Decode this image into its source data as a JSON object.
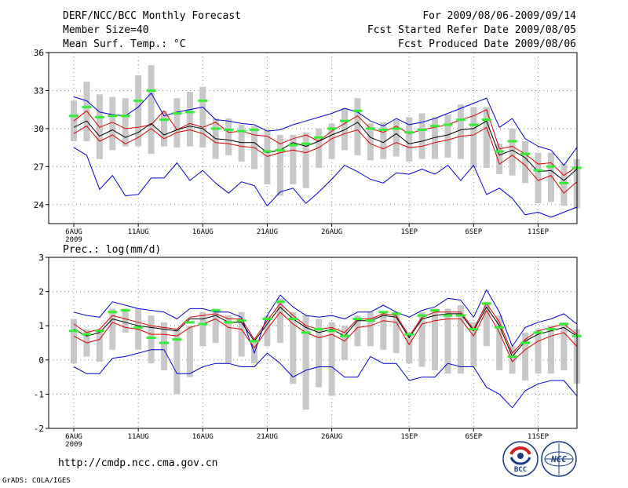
{
  "header": {
    "title": "DERF/NCC/BCC Monthly Forecast",
    "member_size": "Member Size=40",
    "variable": "Mean Surf. Temp.: °C",
    "forecast_period": "For 2009/08/06-2009/09/14",
    "start_date": "Fcst Started Refer Date 2009/08/05",
    "produced_date": "Fcst Produced Date 2009/08/06"
  },
  "footer": {
    "url": "http://cmdp.ncc.cma.gov.cn",
    "credit": "GrADS: COLA/IGES"
  },
  "logos": [
    {
      "name": "bcc-logo",
      "text": "BCC"
    },
    {
      "name": "ncc-logo",
      "text": "NCC"
    }
  ],
  "colors": {
    "envelope": "#0000dd",
    "spread": "#dd0000",
    "mean": "#000000",
    "box": "#c8c8c8",
    "marker": "#33ee33",
    "grid": "#888888"
  },
  "chart_data": [
    {
      "type": "line",
      "title": "Mean Surf. Temp.: °C",
      "ylabel": "°C",
      "x_days": [
        1,
        2,
        3,
        4,
        5,
        6,
        7,
        8,
        9,
        10,
        11,
        12,
        13,
        14,
        15,
        16,
        17,
        18,
        19,
        20,
        21,
        22,
        23,
        24,
        25,
        26,
        27,
        28,
        29,
        30,
        31,
        32,
        33,
        34,
        35,
        36,
        37,
        38,
        39,
        40
      ],
      "ylim": [
        22.5,
        36
      ],
      "yticks": [
        24,
        27,
        30,
        33,
        36
      ],
      "xticks": [
        {
          "day": 1,
          "label": "6AUG"
        },
        {
          "day": 6,
          "label": "11AUG"
        },
        {
          "day": 11,
          "label": "16AUG"
        },
        {
          "day": 16,
          "label": "21AUG"
        },
        {
          "day": 21,
          "label": "26AUG"
        },
        {
          "day": 27,
          "label": "1SEP"
        },
        {
          "day": 32,
          "label": "6SEP"
        },
        {
          "day": 37,
          "label": "11SEP"
        }
      ],
      "year_label": "2009",
      "grid": true,
      "series": [
        {
          "name": "max",
          "values": [
            32.5,
            32.2,
            31.3,
            31.1,
            31.0,
            31.7,
            32.8,
            31.0,
            31.3,
            31.5,
            31.7,
            30.7,
            30.6,
            30.4,
            30.3,
            29.8,
            29.9,
            30.3,
            30.6,
            30.9,
            31.2,
            31.6,
            31.3,
            30.6,
            30.2,
            30.8,
            30.3,
            30.5,
            30.8,
            31.2,
            31.6,
            32.0,
            32.4,
            30.1,
            30.8,
            29.2,
            28.6,
            28.3,
            27.1,
            28.5
          ]
        },
        {
          "name": "upper",
          "values": [
            30.6,
            31.4,
            30.1,
            30.5,
            30.0,
            30.1,
            30.3,
            31.4,
            29.9,
            30.4,
            30.1,
            30.5,
            29.7,
            29.8,
            29.5,
            29.4,
            28.8,
            29.2,
            29.5,
            29.0,
            29.8,
            30.4,
            31.0,
            30.0,
            29.7,
            30.2,
            29.6,
            29.9,
            30.1,
            30.3,
            30.7,
            31.0,
            31.5,
            28.4,
            28.6,
            28.0,
            27.2,
            27.3,
            26.3,
            27.0
          ]
        },
        {
          "name": "mean",
          "values": [
            30.1,
            30.6,
            29.4,
            29.9,
            29.3,
            29.7,
            30.4,
            29.5,
            29.9,
            30.2,
            30.0,
            29.2,
            29.1,
            28.9,
            28.9,
            28.1,
            28.3,
            28.9,
            28.6,
            29.0,
            29.5,
            29.9,
            30.5,
            29.3,
            28.9,
            29.6,
            28.8,
            29.0,
            29.3,
            29.5,
            29.9,
            30.0,
            30.6,
            27.9,
            28.3,
            27.7,
            26.6,
            26.7,
            25.9,
            26.8
          ]
        },
        {
          "name": "lower",
          "values": [
            29.6,
            30.2,
            29.0,
            29.5,
            28.8,
            29.3,
            30.0,
            29.2,
            29.7,
            29.9,
            29.6,
            28.9,
            28.8,
            28.6,
            28.5,
            27.8,
            28.1,
            28.3,
            28.1,
            28.5,
            29.2,
            29.6,
            29.9,
            28.8,
            28.4,
            28.9,
            28.5,
            28.6,
            28.9,
            29.1,
            29.4,
            29.5,
            30.1,
            27.2,
            27.9,
            27.1,
            25.9,
            26.3,
            24.9,
            25.8
          ]
        },
        {
          "name": "min",
          "values": [
            28.5,
            27.9,
            25.2,
            26.3,
            24.7,
            24.8,
            26.1,
            26.1,
            27.3,
            25.9,
            26.7,
            25.7,
            24.9,
            25.8,
            25.5,
            23.9,
            25.0,
            25.3,
            24.1,
            25.0,
            26.0,
            27.1,
            26.6,
            26.0,
            25.7,
            26.5,
            26.4,
            26.8,
            26.4,
            27.1,
            25.9,
            27.1,
            24.8,
            25.3,
            24.5,
            23.2,
            23.4,
            23.0,
            23.4,
            23.8
          ]
        }
      ],
      "boxes": [
        {
          "day": 1,
          "low": 29.0,
          "high": 32.2
        },
        {
          "day": 2,
          "low": 29.0,
          "high": 33.7
        },
        {
          "day": 3,
          "low": 27.6,
          "high": 32.7
        },
        {
          "day": 4,
          "low": 28.3,
          "high": 32.5
        },
        {
          "day": 5,
          "low": 28.6,
          "high": 32.4
        },
        {
          "day": 6,
          "low": 28.6,
          "high": 34.2
        },
        {
          "day": 7,
          "low": 28.0,
          "high": 35.0
        },
        {
          "day": 8,
          "low": 28.6,
          "high": 31.4
        },
        {
          "day": 9,
          "low": 28.5,
          "high": 32.4
        },
        {
          "day": 10,
          "low": 28.6,
          "high": 32.9
        },
        {
          "day": 11,
          "low": 28.5,
          "high": 33.3
        },
        {
          "day": 12,
          "low": 27.6,
          "high": 30.8
        },
        {
          "day": 13,
          "low": 27.9,
          "high": 30.8
        },
        {
          "day": 14,
          "low": 27.4,
          "high": 30.3
        },
        {
          "day": 15,
          "low": 26.8,
          "high": 30.2
        },
        {
          "day": 16,
          "low": 25.6,
          "high": 29.9
        },
        {
          "day": 17,
          "low": 24.7,
          "high": 29.5
        },
        {
          "day": 18,
          "low": 25.6,
          "high": 29.5
        },
        {
          "day": 19,
          "low": 25.3,
          "high": 29.7
        },
        {
          "day": 20,
          "low": 26.9,
          "high": 30.0
        },
        {
          "day": 21,
          "low": 27.6,
          "high": 30.4
        },
        {
          "day": 22,
          "low": 28.3,
          "high": 31.6
        },
        {
          "day": 23,
          "low": 27.9,
          "high": 32.4
        },
        {
          "day": 24,
          "low": 27.5,
          "high": 30.4
        },
        {
          "day": 25,
          "low": 27.6,
          "high": 30.5
        },
        {
          "day": 26,
          "low": 27.8,
          "high": 30.7
        },
        {
          "day": 27,
          "low": 27.4,
          "high": 30.9
        },
        {
          "day": 28,
          "low": 27.6,
          "high": 31.2
        },
        {
          "day": 29,
          "low": 27.6,
          "high": 30.9
        },
        {
          "day": 30,
          "low": 27.7,
          "high": 31.1
        },
        {
          "day": 31,
          "low": 27.6,
          "high": 31.9
        },
        {
          "day": 32,
          "low": 26.9,
          "high": 31.7
        },
        {
          "day": 33,
          "low": 26.9,
          "high": 31.7
        },
        {
          "day": 34,
          "low": 26.4,
          "high": 28.8
        },
        {
          "day": 35,
          "low": 26.3,
          "high": 30.0
        },
        {
          "day": 36,
          "low": 25.7,
          "high": 29.0
        },
        {
          "day": 37,
          "low": 24.1,
          "high": 28.1
        },
        {
          "day": 38,
          "low": 24.2,
          "high": 28.1
        },
        {
          "day": 39,
          "low": 23.9,
          "high": 27.2
        },
        {
          "day": 40,
          "low": 23.7,
          "high": 27.6
        }
      ],
      "markers": [
        31.0,
        31.7,
        30.9,
        31.0,
        31.0,
        32.2,
        33.0,
        30.7,
        31.2,
        31.3,
        32.2,
        30.0,
        29.9,
        29.8,
        29.9,
        28.2,
        28.3,
        28.7,
        28.8,
        29.3,
        30.0,
        30.6,
        31.4,
        30.0,
        29.9,
        30.0,
        29.7,
        29.9,
        30.2,
        30.3,
        30.7,
        30.3,
        30.7,
        28.2,
        29.0,
        28.0,
        26.7,
        27.0,
        25.7,
        26.9
      ]
    },
    {
      "type": "line",
      "title": "Prec.: log(mm/d)",
      "ylabel": "log(mm/d)",
      "x_days": [
        1,
        2,
        3,
        4,
        5,
        6,
        7,
        8,
        9,
        10,
        11,
        12,
        13,
        14,
        15,
        16,
        17,
        18,
        19,
        20,
        21,
        22,
        23,
        24,
        25,
        26,
        27,
        28,
        29,
        30,
        31,
        32,
        33,
        34,
        35,
        36,
        37,
        38,
        39,
        40
      ],
      "ylim": [
        -2,
        3
      ],
      "yticks": [
        -2,
        -1,
        0,
        1,
        2,
        3
      ],
      "xticks": [
        {
          "day": 1,
          "label": "6AUG"
        },
        {
          "day": 6,
          "label": "11AUG"
        },
        {
          "day": 11,
          "label": "16AUG"
        },
        {
          "day": 16,
          "label": "21AUG"
        },
        {
          "day": 21,
          "label": "26AUG"
        },
        {
          "day": 27,
          "label": "1SEP"
        },
        {
          "day": 32,
          "label": "6SEP"
        },
        {
          "day": 37,
          "label": "11SEP"
        }
      ],
      "year_label": "2009",
      "grid": true,
      "series": [
        {
          "name": "max",
          "values": [
            1.4,
            1.3,
            1.25,
            1.7,
            1.6,
            1.5,
            1.45,
            1.4,
            1.2,
            1.5,
            1.5,
            1.4,
            1.4,
            1.25,
            0.2,
            1.3,
            1.9,
            1.55,
            1.3,
            1.25,
            1.3,
            1.2,
            1.4,
            1.4,
            1.6,
            1.4,
            1.25,
            1.45,
            1.55,
            1.8,
            1.75,
            1.25,
            2.05,
            1.4,
            0.4,
            0.95,
            1.1,
            1.2,
            1.35,
            1.05
          ]
        },
        {
          "name": "upper",
          "values": [
            1.05,
            0.8,
            0.9,
            1.3,
            1.2,
            1.1,
            1.0,
            0.95,
            0.9,
            1.25,
            1.3,
            1.35,
            1.2,
            1.2,
            0.6,
            1.15,
            1.65,
            1.3,
            1.0,
            0.9,
            0.95,
            0.8,
            1.2,
            1.2,
            1.35,
            1.3,
            0.7,
            1.25,
            1.4,
            1.4,
            1.4,
            0.9,
            1.65,
            1.1,
            0.2,
            0.6,
            0.85,
            0.95,
            1.05,
            0.75
          ]
        },
        {
          "name": "mean",
          "values": [
            0.9,
            0.7,
            0.8,
            1.2,
            1.1,
            1.0,
            0.95,
            0.9,
            0.85,
            1.2,
            1.2,
            1.3,
            1.1,
            1.1,
            0.55,
            1.05,
            1.55,
            1.2,
            0.95,
            0.8,
            0.9,
            0.7,
            1.15,
            1.15,
            1.3,
            1.25,
            0.65,
            1.2,
            1.3,
            1.35,
            1.35,
            0.85,
            1.55,
            1.0,
            0.1,
            0.55,
            0.75,
            0.85,
            0.95,
            0.7
          ]
        },
        {
          "name": "lower",
          "values": [
            0.7,
            0.5,
            0.6,
            1.1,
            0.95,
            0.9,
            0.75,
            0.75,
            0.7,
            0.95,
            1.05,
            1.2,
            0.95,
            0.9,
            0.35,
            0.9,
            1.4,
            1.05,
            0.8,
            0.65,
            0.75,
            0.55,
            0.95,
            1.0,
            1.15,
            1.1,
            0.45,
            1.05,
            1.15,
            1.2,
            1.2,
            0.7,
            1.45,
            0.8,
            -0.05,
            0.3,
            0.55,
            0.7,
            0.8,
            0.4
          ]
        },
        {
          "name": "min",
          "values": [
            -0.2,
            -0.4,
            -0.4,
            0.05,
            0.1,
            0.2,
            0.3,
            0.3,
            -0.4,
            -0.4,
            -0.2,
            -0.1,
            -0.1,
            -0.2,
            -0.2,
            0.2,
            -0.1,
            -0.5,
            -0.3,
            -0.2,
            -0.2,
            -0.5,
            -0.5,
            0.1,
            -0.1,
            -0.1,
            -0.6,
            -0.5,
            -0.5,
            -0.1,
            -0.2,
            -0.2,
            -0.8,
            -1.0,
            -1.4,
            -0.9,
            -0.7,
            -0.6,
            -0.6,
            -1.05
          ]
        }
      ],
      "boxes": [
        {
          "day": 1,
          "low": -0.1,
          "high": 1.2
        },
        {
          "day": 2,
          "low": 0.1,
          "high": 0.9
        },
        {
          "day": 3,
          "low": -0.05,
          "high": 0.9
        },
        {
          "day": 4,
          "low": 0.3,
          "high": 1.5
        },
        {
          "day": 5,
          "low": 0.8,
          "high": 1.5
        },
        {
          "day": 6,
          "low": 0.3,
          "high": 1.5
        },
        {
          "day": 7,
          "low": -0.1,
          "high": 1.3
        },
        {
          "day": 8,
          "low": -0.3,
          "high": 1.1
        },
        {
          "day": 9,
          "low": -1.0,
          "high": 0.9
        },
        {
          "day": 10,
          "low": -0.5,
          "high": 1.0
        },
        {
          "day": 11,
          "low": 0.4,
          "high": 1.4
        },
        {
          "day": 12,
          "low": 0.5,
          "high": 1.5
        },
        {
          "day": 13,
          "low": -0.1,
          "high": 1.3
        },
        {
          "day": 14,
          "low": 0.1,
          "high": 1.4
        },
        {
          "day": 15,
          "low": -0.1,
          "high": 0.6
        },
        {
          "day": 16,
          "low": 0.4,
          "high": 1.3
        },
        {
          "day": 17,
          "low": 0.5,
          "high": 1.8
        },
        {
          "day": 18,
          "low": -0.7,
          "high": 1.4
        },
        {
          "day": 19,
          "low": -1.45,
          "high": 1.3
        },
        {
          "day": 20,
          "low": -0.8,
          "high": 1.2
        },
        {
          "day": 21,
          "low": -1.05,
          "high": 1.1
        },
        {
          "day": 22,
          "low": 0.0,
          "high": 1.0
        },
        {
          "day": 23,
          "low": 0.4,
          "high": 1.3
        },
        {
          "day": 24,
          "low": 0.4,
          "high": 1.4
        },
        {
          "day": 25,
          "low": 0.3,
          "high": 1.4
        },
        {
          "day": 26,
          "low": 0.2,
          "high": 1.4
        },
        {
          "day": 27,
          "low": -0.1,
          "high": 0.8
        },
        {
          "day": 28,
          "low": -0.2,
          "high": 1.4
        },
        {
          "day": 29,
          "low": -0.3,
          "high": 1.5
        },
        {
          "day": 30,
          "low": -0.4,
          "high": 1.5
        },
        {
          "day": 31,
          "low": -0.4,
          "high": 1.6
        },
        {
          "day": 32,
          "low": -0.2,
          "high": 1.1
        },
        {
          "day": 33,
          "low": 0.4,
          "high": 1.7
        },
        {
          "day": 34,
          "low": -0.3,
          "high": 1.3
        },
        {
          "day": 35,
          "low": -0.4,
          "high": 0.4
        },
        {
          "day": 36,
          "low": -0.6,
          "high": 0.8
        },
        {
          "day": 37,
          "low": -0.4,
          "high": 0.9
        },
        {
          "day": 38,
          "low": -0.4,
          "high": 1.0
        },
        {
          "day": 39,
          "low": -0.3,
          "high": 1.1
        },
        {
          "day": 40,
          "low": -0.7,
          "high": 0.9
        }
      ],
      "markers": [
        0.85,
        0.75,
        0.85,
        1.4,
        1.45,
        0.95,
        0.65,
        0.5,
        0.6,
        1.1,
        1.05,
        1.45,
        1.1,
        1.15,
        0.55,
        1.2,
        1.7,
        1.2,
        0.8,
        0.9,
        0.85,
        0.7,
        1.2,
        1.15,
        1.4,
        1.35,
        0.75,
        1.3,
        1.45,
        1.3,
        1.3,
        0.9,
        1.65,
        0.95,
        0.1,
        0.5,
        0.8,
        0.9,
        1.05,
        0.7
      ]
    }
  ]
}
